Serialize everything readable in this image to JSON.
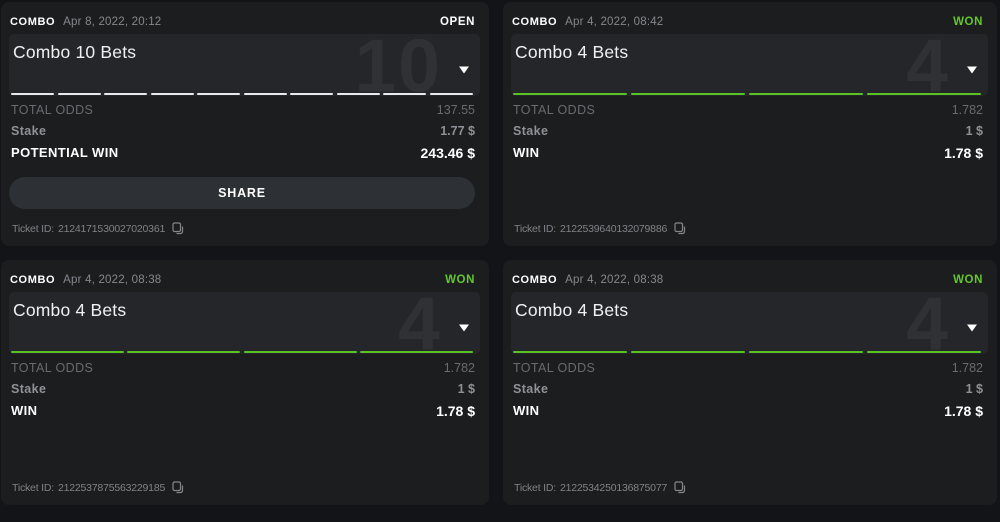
{
  "page": {
    "background": "#131417"
  },
  "colors": {
    "accent_green": "#58c322",
    "won_text": "#63c72c",
    "open_text": "#ffffff",
    "card_bg": "#1b1d1f",
    "panel_bg": "#242629"
  },
  "labels": {
    "total_odds": "TOTAL ODDS",
    "stake": "Stake",
    "ticket_prefix": "Ticket ID:"
  },
  "cards": [
    {
      "type_label": "COMBO",
      "date": "Apr 8, 2022, 20:12",
      "status": "OPEN",
      "status_state": "open",
      "title": "Combo 10 Bets",
      "bet_count": "10",
      "segments": 10,
      "segment_state": "open",
      "total_odds": "137.55",
      "stake": "1.77 $",
      "win_label": "POTENTIAL WIN",
      "win_value": "243.46 $",
      "share_label": "SHARE",
      "has_share": true,
      "ticket_id": "2124171530027020361"
    },
    {
      "type_label": "COMBO",
      "date": "Apr 4, 2022, 08:42",
      "status": "WON",
      "status_state": "won",
      "title": "Combo 4 Bets",
      "bet_count": "4",
      "segments": 4,
      "segment_state": "won",
      "total_odds": "1.782",
      "stake": "1 $",
      "win_label": "WIN",
      "win_value": "1.78 $",
      "has_share": false,
      "ticket_id": "2122539640132079886"
    },
    {
      "type_label": "COMBO",
      "date": "Apr 4, 2022, 08:38",
      "status": "WON",
      "status_state": "won",
      "title": "Combo 4 Bets",
      "bet_count": "4",
      "segments": 4,
      "segment_state": "won",
      "total_odds": "1.782",
      "stake": "1 $",
      "win_label": "WIN",
      "win_value": "1.78 $",
      "has_share": false,
      "ticket_id": "2122537875563229185"
    },
    {
      "type_label": "COMBO",
      "date": "Apr 4, 2022, 08:38",
      "status": "WON",
      "status_state": "won",
      "title": "Combo 4 Bets",
      "bet_count": "4",
      "segments": 4,
      "segment_state": "won",
      "total_odds": "1.782",
      "stake": "1 $",
      "win_label": "WIN",
      "win_value": "1.78 $",
      "has_share": false,
      "ticket_id": "2122534250136875077"
    }
  ]
}
